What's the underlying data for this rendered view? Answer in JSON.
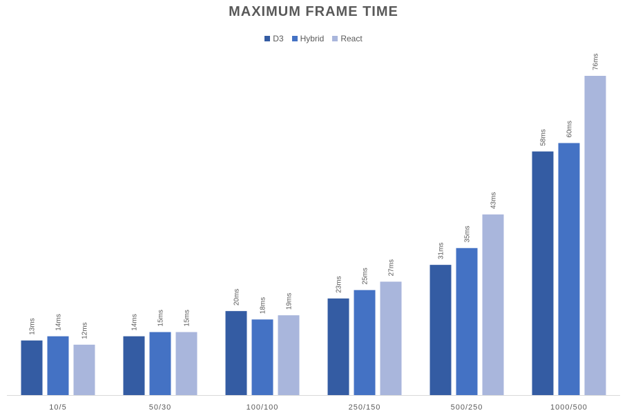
{
  "chart_data": {
    "type": "bar",
    "title": "MAXIMUM FRAME TIME",
    "xlabel": "",
    "ylabel": "",
    "categories": [
      "10/5",
      "50/30",
      "100/100",
      "250/150",
      "500/250",
      "1000/500"
    ],
    "series": [
      {
        "name": "D3",
        "color": "#345ca3",
        "values": [
          13,
          14,
          20,
          23,
          31,
          58
        ],
        "labels": [
          "13ms",
          "14ms",
          "20ms",
          "23ms",
          "31ms",
          "58ms"
        ]
      },
      {
        "name": "Hybrid",
        "color": "#4472c4",
        "values": [
          14,
          15,
          18,
          25,
          35,
          60
        ],
        "labels": [
          "14ms",
          "15ms",
          "18ms",
          "25ms",
          "35ms",
          "60ms"
        ]
      },
      {
        "name": "React",
        "color": "#a9b6dc",
        "values": [
          12,
          15,
          19,
          27,
          43,
          76
        ],
        "labels": [
          "12ms",
          "15ms",
          "19ms",
          "27ms",
          "43ms",
          "76ms"
        ]
      }
    ],
    "ylim": [
      0,
      76
    ],
    "unit": "ms",
    "grid": false,
    "legend_position": "top"
  }
}
